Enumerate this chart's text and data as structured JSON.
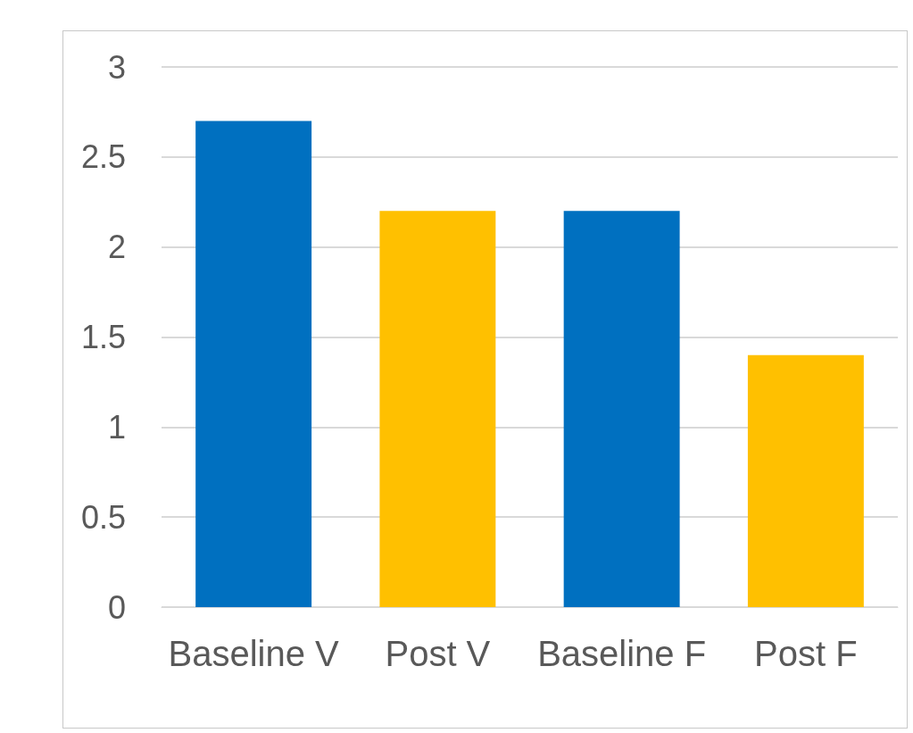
{
  "chart_data": {
    "type": "bar",
    "categories": [
      "Baseline V",
      "Post V",
      "Baseline F",
      "Post F"
    ],
    "values": [
      2.7,
      2.2,
      2.2,
      1.4
    ],
    "colors": [
      "#0070c0",
      "#ffc000",
      "#0070c0",
      "#ffc000"
    ],
    "ylim": [
      0,
      3
    ],
    "yticks": [
      0,
      0.5,
      1,
      1.5,
      2,
      2.5,
      3
    ],
    "grid": "y"
  }
}
